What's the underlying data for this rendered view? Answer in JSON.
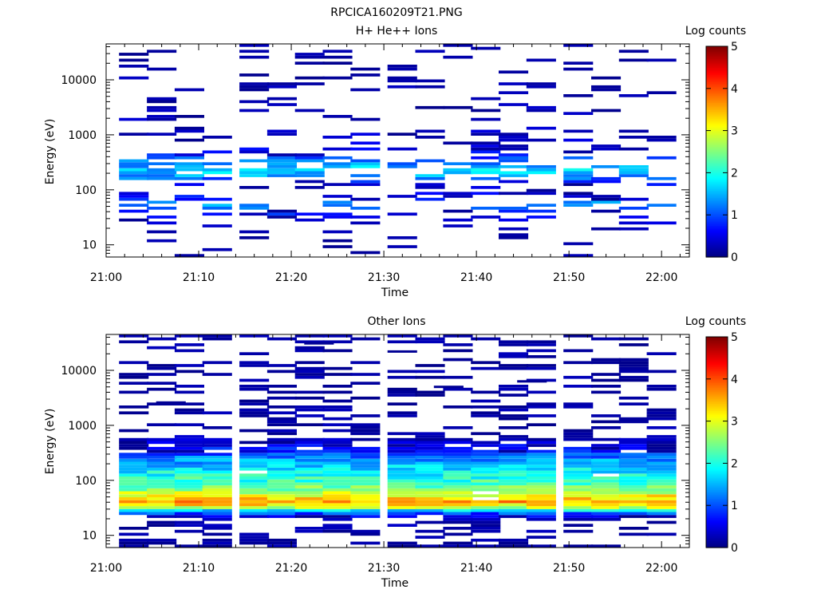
{
  "figure_title": "RPCICA160209T21.PNG",
  "chart_data": [
    {
      "type": "heatmap",
      "title": "H+ He++ Ions",
      "xlabel": "Time",
      "ylabel": "Energy (eV)",
      "y_scale": "log",
      "ylim": [
        6,
        45000
      ],
      "xlim": [
        "21:00",
        "22:03"
      ],
      "x_ticks": [
        "21:00",
        "21:10",
        "21:20",
        "21:30",
        "21:40",
        "21:50",
        "22:00"
      ],
      "y_ticks": [
        "10",
        "100",
        "1000",
        "10000"
      ],
      "colorbar": {
        "label": "Log counts",
        "range": [
          0,
          5
        ],
        "ticks": [
          "0",
          "1",
          "2",
          "3",
          "4",
          "5"
        ],
        "colormap": "jet"
      },
      "time_bins": [
        "21:03",
        "21:06",
        "21:09",
        "21:12",
        "21:16",
        "21:19",
        "21:22",
        "21:25",
        "21:28",
        "21:32",
        "21:35",
        "21:38",
        "21:41",
        "21:44",
        "21:47",
        "21:51",
        "21:54",
        "21:57",
        "22:00"
      ],
      "profile_log_counts": [
        {
          "energy_eV": 10,
          "value": 0.1
        },
        {
          "energy_eV": 20,
          "value": 0.1
        },
        {
          "energy_eV": 35,
          "value": 0.7
        },
        {
          "energy_eV": 45,
          "value": 1.1
        },
        {
          "energy_eV": 55,
          "value": 1.3
        },
        {
          "energy_eV": 100,
          "value": 0.2
        },
        {
          "energy_eV": 150,
          "value": 1.1
        },
        {
          "energy_eV": 220,
          "value": 1.7
        },
        {
          "energy_eV": 300,
          "value": 1.3
        },
        {
          "energy_eV": 450,
          "value": 0.8
        },
        {
          "energy_eV": 700,
          "value": 0.4
        },
        {
          "energy_eV": 1500,
          "value": 0.25
        },
        {
          "energy_eV": 5000,
          "value": 0.15
        },
        {
          "energy_eV": 40000,
          "value": 0.1
        }
      ],
      "coverage": 0.35,
      "seed": 17
    },
    {
      "type": "heatmap",
      "title": "Other Ions",
      "xlabel": "Time",
      "ylabel": "Energy (eV)",
      "y_scale": "log",
      "ylim": [
        6,
        45000
      ],
      "xlim": [
        "21:00",
        "22:03"
      ],
      "x_ticks": [
        "21:00",
        "21:10",
        "21:20",
        "21:30",
        "21:40",
        "21:50",
        "22:00"
      ],
      "y_ticks": [
        "10",
        "100",
        "1000",
        "10000"
      ],
      "colorbar": {
        "label": "Log counts",
        "range": [
          0,
          5
        ],
        "ticks": [
          "0",
          "1",
          "2",
          "3",
          "4",
          "5"
        ],
        "colormap": "jet"
      },
      "time_bins": [
        "21:03",
        "21:06",
        "21:09",
        "21:12",
        "21:16",
        "21:19",
        "21:22",
        "21:25",
        "21:28",
        "21:32",
        "21:35",
        "21:38",
        "21:41",
        "21:44",
        "21:47",
        "21:51",
        "21:54",
        "21:57",
        "22:00"
      ],
      "profile_log_counts": [
        {
          "energy_eV": 10,
          "value": 0.1
        },
        {
          "energy_eV": 20,
          "value": 0.2
        },
        {
          "energy_eV": 27,
          "value": 1.3
        },
        {
          "energy_eV": 32,
          "value": 2.8
        },
        {
          "energy_eV": 40,
          "value": 3.6
        },
        {
          "energy_eV": 50,
          "value": 3.2
        },
        {
          "energy_eV": 70,
          "value": 2.5
        },
        {
          "energy_eV": 100,
          "value": 2.1
        },
        {
          "energy_eV": 150,
          "value": 1.8
        },
        {
          "energy_eV": 220,
          "value": 1.4
        },
        {
          "energy_eV": 350,
          "value": 0.9
        },
        {
          "energy_eV": 500,
          "value": 0.4
        },
        {
          "energy_eV": 700,
          "value": 0.15
        },
        {
          "energy_eV": 2000,
          "value": 0.1
        },
        {
          "energy_eV": 40000,
          "value": 0.1
        }
      ],
      "coverage": 0.9,
      "sparse_high_energy": [
        {
          "time": "21:07",
          "energy_eV": 2600
        },
        {
          "time": "21:23",
          "energy_eV": 31000
        },
        {
          "time": "21:32",
          "energy_eV": 22000
        },
        {
          "time": "21:37",
          "energy_eV": 5000
        },
        {
          "time": "21:46",
          "energy_eV": 6300
        }
      ],
      "seed": 91
    }
  ]
}
